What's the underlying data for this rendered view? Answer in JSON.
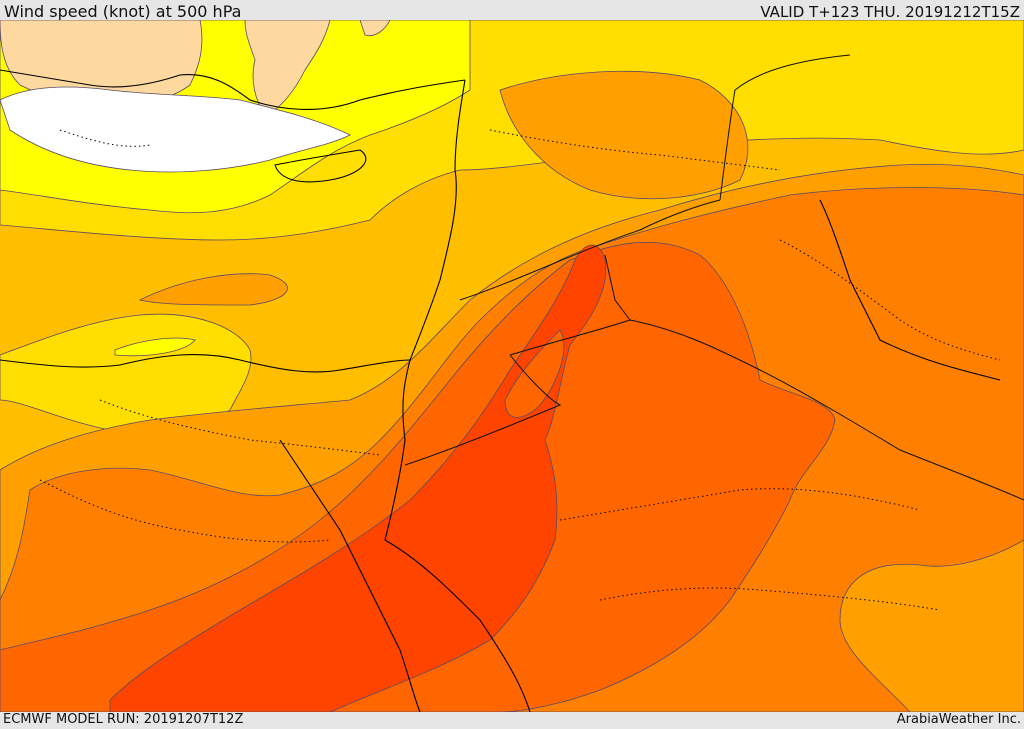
{
  "header": {
    "title": "Wind speed (knot) at 500 hPa",
    "valid": "VALID T+123 THU. 20191212T15Z"
  },
  "footer": {
    "model_run": "ECMWF MODEL RUN: 20191207T12Z",
    "credit": "ArabiaWeather Inc."
  },
  "palette": {
    "calm": "#ffffff",
    "land_light": "#fdd9a0",
    "band_1": "#ffff00",
    "band_2": "#ffde00",
    "band_3": "#ffbe00",
    "band_4": "#ffa000",
    "band_5": "#ff8000",
    "band_6": "#ff6600",
    "band_7": "#ff4400"
  }
}
